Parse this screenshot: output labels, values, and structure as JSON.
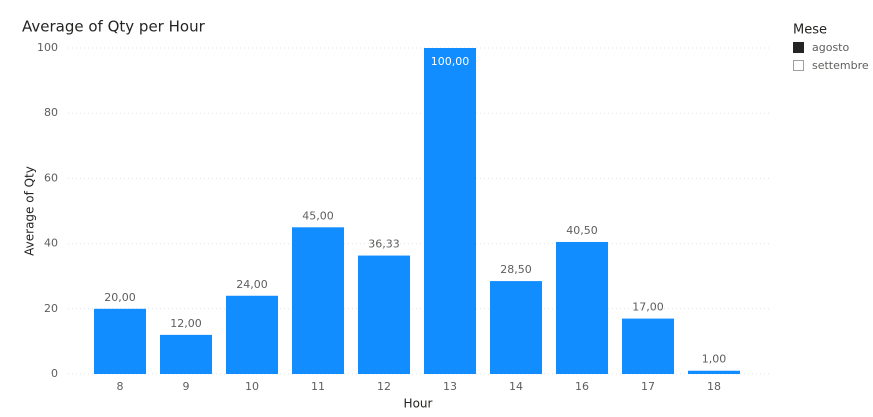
{
  "chart_data": {
    "type": "bar",
    "title": "Average of Qty per Hour",
    "x_label": "Hour",
    "y_label": "Average of Qty",
    "categories": [
      "8",
      "9",
      "10",
      "11",
      "12",
      "13",
      "14",
      "16",
      "17",
      "18"
    ],
    "values": [
      20,
      12,
      24,
      45,
      36.33,
      100,
      28.5,
      40.5,
      17,
      1
    ],
    "value_labels": [
      "20,00",
      "12,00",
      "24,00",
      "45,00",
      "36,33",
      "100,00",
      "28,50",
      "40,50",
      "17,00",
      "1,00"
    ],
    "color": "#118DFF",
    "ylim": [
      0,
      100
    ],
    "yticks": [
      0,
      20,
      40,
      60,
      80,
      100
    ],
    "grid": true,
    "legend": {
      "title": "Mese",
      "position": "right",
      "items": [
        {
          "name": "agosto",
          "color": "#252423",
          "checked": true
        },
        {
          "name": "settembre",
          "color": "#ffffff",
          "checked": false
        }
      ]
    }
  }
}
